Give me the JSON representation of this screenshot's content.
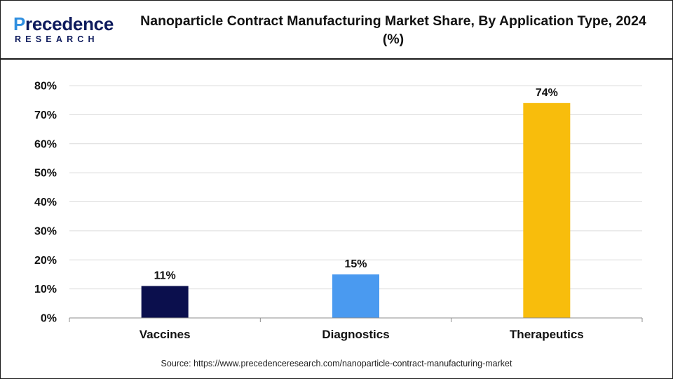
{
  "brand": {
    "name_prefix": "P",
    "name_rest": "recedence",
    "sub": "RESEARCH",
    "accent": "#2f8fe0",
    "primary": "#0d1a5c"
  },
  "chart_data": {
    "type": "bar",
    "title": "Nanoparticle Contract Manufacturing Market Share, By Application Type, 2024 (%)",
    "categories": [
      "Vaccines",
      "Diagnostics",
      "Therapeutics"
    ],
    "values": [
      11,
      15,
      74
    ],
    "value_labels": [
      "11%",
      "15%",
      "74%"
    ],
    "colors": [
      "#0b0f4d",
      "#4a9af0",
      "#f8bd0c"
    ],
    "ylim": [
      0,
      80
    ],
    "yticks": [
      0,
      10,
      20,
      30,
      40,
      50,
      60,
      70,
      80
    ],
    "ytick_labels": [
      "0%",
      "10%",
      "20%",
      "30%",
      "40%",
      "50%",
      "60%",
      "70%",
      "80%"
    ],
    "xlabel": "",
    "ylabel": "",
    "grid": true
  },
  "source": "Source: https://www.precedenceresearch.com/nanoparticle-contract-manufacturing-market"
}
